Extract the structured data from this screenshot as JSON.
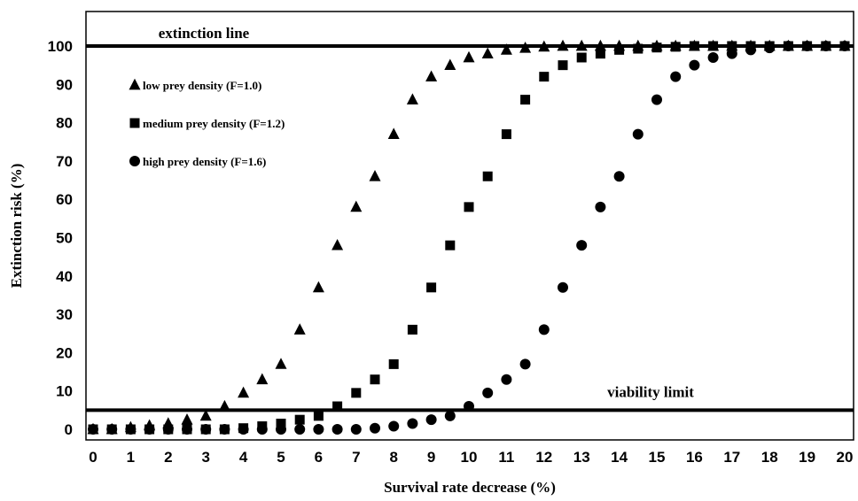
{
  "chart_data": {
    "type": "scatter",
    "xlabel": "Survival rate decrease (%)",
    "ylabel": "Extinction risk (%)",
    "xlim": [
      0,
      20
    ],
    "ylim": [
      0,
      100
    ],
    "x_ticks": [
      0,
      1,
      2,
      3,
      4,
      5,
      6,
      7,
      8,
      9,
      10,
      11,
      12,
      13,
      14,
      15,
      16,
      17,
      18,
      19,
      20
    ],
    "y_ticks": [
      0,
      10,
      20,
      30,
      40,
      50,
      60,
      70,
      80,
      90,
      100
    ],
    "grid": false,
    "legend_position": "top-left",
    "reference_lines": [
      {
        "label": "extinction line",
        "y": 100
      },
      {
        "label": "viability limit",
        "y": 5
      }
    ],
    "series": [
      {
        "name": "low prey density (F=1.0)",
        "marker": "triangle",
        "x": [
          0,
          0.5,
          1,
          1.5,
          2,
          2.5,
          3,
          3.5,
          4,
          4.5,
          5,
          5.5,
          6,
          6.5,
          7,
          7.5,
          8,
          8.5,
          9,
          9.5,
          10,
          10.5,
          11,
          11.5,
          12,
          12.5,
          13,
          13.5,
          14,
          14.5,
          15,
          15.5,
          16,
          16.5,
          17,
          17.5,
          18,
          18.5,
          19,
          19.5,
          20
        ],
        "y": [
          0,
          0,
          0.5,
          1,
          1.5,
          2.5,
          3.5,
          6,
          9.5,
          13,
          17,
          26,
          37,
          48,
          58,
          66,
          77,
          86,
          92,
          95,
          97,
          98,
          99,
          99.5,
          99.8,
          100,
          100,
          100,
          100,
          100,
          100,
          100,
          100,
          100,
          100,
          100,
          100,
          100,
          100,
          100,
          100
        ]
      },
      {
        "name": "medium prey density (F=1.2)",
        "marker": "square",
        "x": [
          0,
          0.5,
          1,
          1.5,
          2,
          2.5,
          3,
          3.5,
          4,
          4.5,
          5,
          5.5,
          6,
          6.5,
          7,
          7.5,
          8,
          8.5,
          9,
          9.5,
          10,
          10.5,
          11,
          11.5,
          12,
          12.5,
          13,
          13.5,
          14,
          14.5,
          15,
          15.5,
          16,
          16.5,
          17,
          17.5,
          18,
          18.5,
          19,
          19.5,
          20
        ],
        "y": [
          0,
          0,
          0,
          0,
          0,
          0,
          0,
          0,
          0.3,
          0.8,
          1.5,
          2.5,
          3.5,
          6,
          9.5,
          13,
          17,
          26,
          37,
          48,
          58,
          66,
          77,
          86,
          92,
          95,
          97,
          98,
          99,
          99.3,
          99.6,
          99.8,
          100,
          100,
          100,
          100,
          100,
          100,
          100,
          100,
          100
        ]
      },
      {
        "name": "high prey density (F=1.6)",
        "marker": "circle",
        "x": [
          0,
          0.5,
          1,
          1.5,
          2,
          2.5,
          3,
          3.5,
          4,
          4.5,
          5,
          5.5,
          6,
          6.5,
          7,
          7.5,
          8,
          8.5,
          9,
          9.5,
          10,
          10.5,
          11,
          11.5,
          12,
          12.5,
          13,
          13.5,
          14,
          14.5,
          15,
          15.5,
          16,
          16.5,
          17,
          17.5,
          18,
          18.5,
          19,
          19.5,
          20
        ],
        "y": [
          0,
          0,
          0,
          0,
          0,
          0,
          0,
          0,
          0,
          0,
          0,
          0,
          0,
          0,
          0,
          0.3,
          0.8,
          1.5,
          2.5,
          3.5,
          6,
          9.5,
          13,
          17,
          26,
          37,
          48,
          58,
          66,
          77,
          86,
          92,
          95,
          97,
          98,
          99,
          99.5,
          100,
          100,
          100,
          100
        ]
      }
    ]
  }
}
